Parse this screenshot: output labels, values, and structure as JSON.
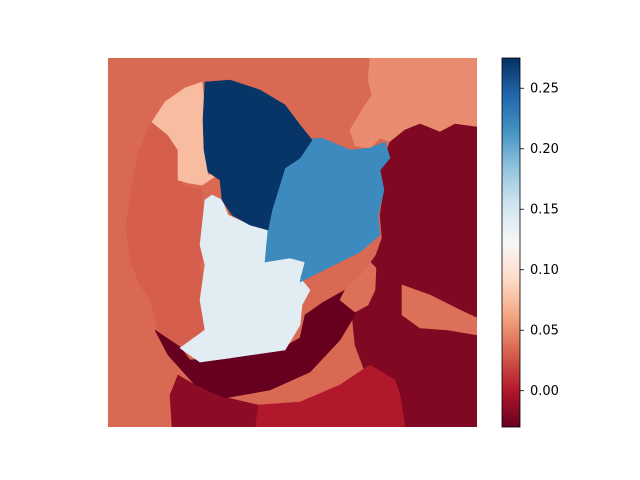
{
  "chart_data": {
    "type": "heatmap",
    "title": "",
    "xlabel": "",
    "ylabel": "",
    "axes_visible": false,
    "colormap": "RdBu",
    "colorbar": {
      "vmin": -0.03,
      "vmax": 0.275,
      "ticks": [
        0.0,
        0.05,
        0.1,
        0.15,
        0.2,
        0.25
      ],
      "tick_labels": [
        "0.00",
        "0.05",
        "0.10",
        "0.15",
        "0.20",
        "0.25"
      ]
    },
    "background_value": 0.035,
    "segments": [
      {
        "region": "top-center",
        "value": 0.272
      },
      {
        "region": "center-right",
        "value": 0.22
      },
      {
        "region": "center",
        "value": 0.14
      },
      {
        "region": "upper-left",
        "value": 0.075
      },
      {
        "region": "left",
        "value": 0.03
      },
      {
        "region": "lower-rim",
        "value": 0.038
      },
      {
        "region": "right-small",
        "value": 0.05
      },
      {
        "region": "top-right",
        "value": -0.02
      },
      {
        "region": "right",
        "value": 0.0
      },
      {
        "region": "bottom-center",
        "value": -0.015
      },
      {
        "region": "bottom-left",
        "value": -0.03
      }
    ]
  }
}
